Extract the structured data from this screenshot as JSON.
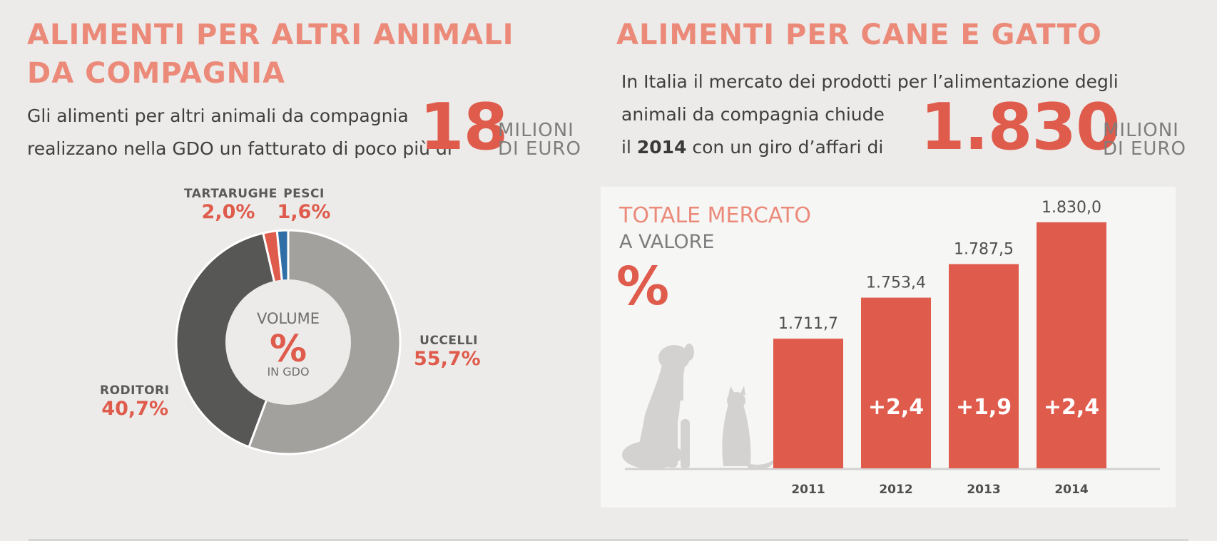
{
  "left": {
    "heading_line1": "ALIMENTI PER ALTRI ANIMALI",
    "heading_line2": "DA COMPAGNIA",
    "intro_line1": "Gli alimenti per altri animali da compagnia",
    "intro_line2": "realizzano nella GDO un fatturato di poco più di",
    "amount": "18",
    "unit_line1": "MILIONI",
    "unit_line2": "DI EURO"
  },
  "right": {
    "heading": "ALIMENTI PER CANE E GATTO",
    "intro_line1": "In Italia il mercato dei prodotti per l’alimentazione degli",
    "intro_line2": "animali da compagnia chiude",
    "intro_line3_pre": "il ",
    "intro_line3_year": "2014",
    "intro_line3_post": " con un giro d’affari di",
    "amount": "1.830",
    "unit_line1": "MILIONI",
    "unit_line2": "DI EURO"
  },
  "chart_data": [
    {
      "type": "pie",
      "subtype": "donut",
      "center_line1": "VOLUME",
      "center_line2": "%",
      "center_line3": "IN GDO",
      "slices": [
        {
          "name": "UCCELLI",
          "value": 55.7,
          "label": "55,7%",
          "color": "#a3a19e"
        },
        {
          "name": "RODITORI",
          "value": 40.7,
          "label": "40,7%",
          "color": "#575756"
        },
        {
          "name": "TARTARUGHE",
          "value": 2.0,
          "label": "2,0%",
          "color": "#df5b4c"
        },
        {
          "name": "PESCI",
          "value": 1.6,
          "label": "1,6%",
          "color": "#2f6fa5"
        }
      ]
    },
    {
      "type": "bar",
      "title": "TOTALE MERCATO",
      "subtitle": "A VALORE",
      "symbol": "%",
      "categories": [
        "2011",
        "2012",
        "2013",
        "2014"
      ],
      "values": [
        1711.7,
        1753.4,
        1787.5,
        1830.0
      ],
      "value_labels": [
        "1.711,7",
        "1.753,4",
        "1.787,5",
        "1.830,0"
      ],
      "change_labels": [
        "",
        "+2,4",
        "+1,9",
        "+2,4"
      ],
      "ylim": [
        1580,
        1840
      ],
      "bar_color": "#df5b4c",
      "grid": false
    }
  ]
}
